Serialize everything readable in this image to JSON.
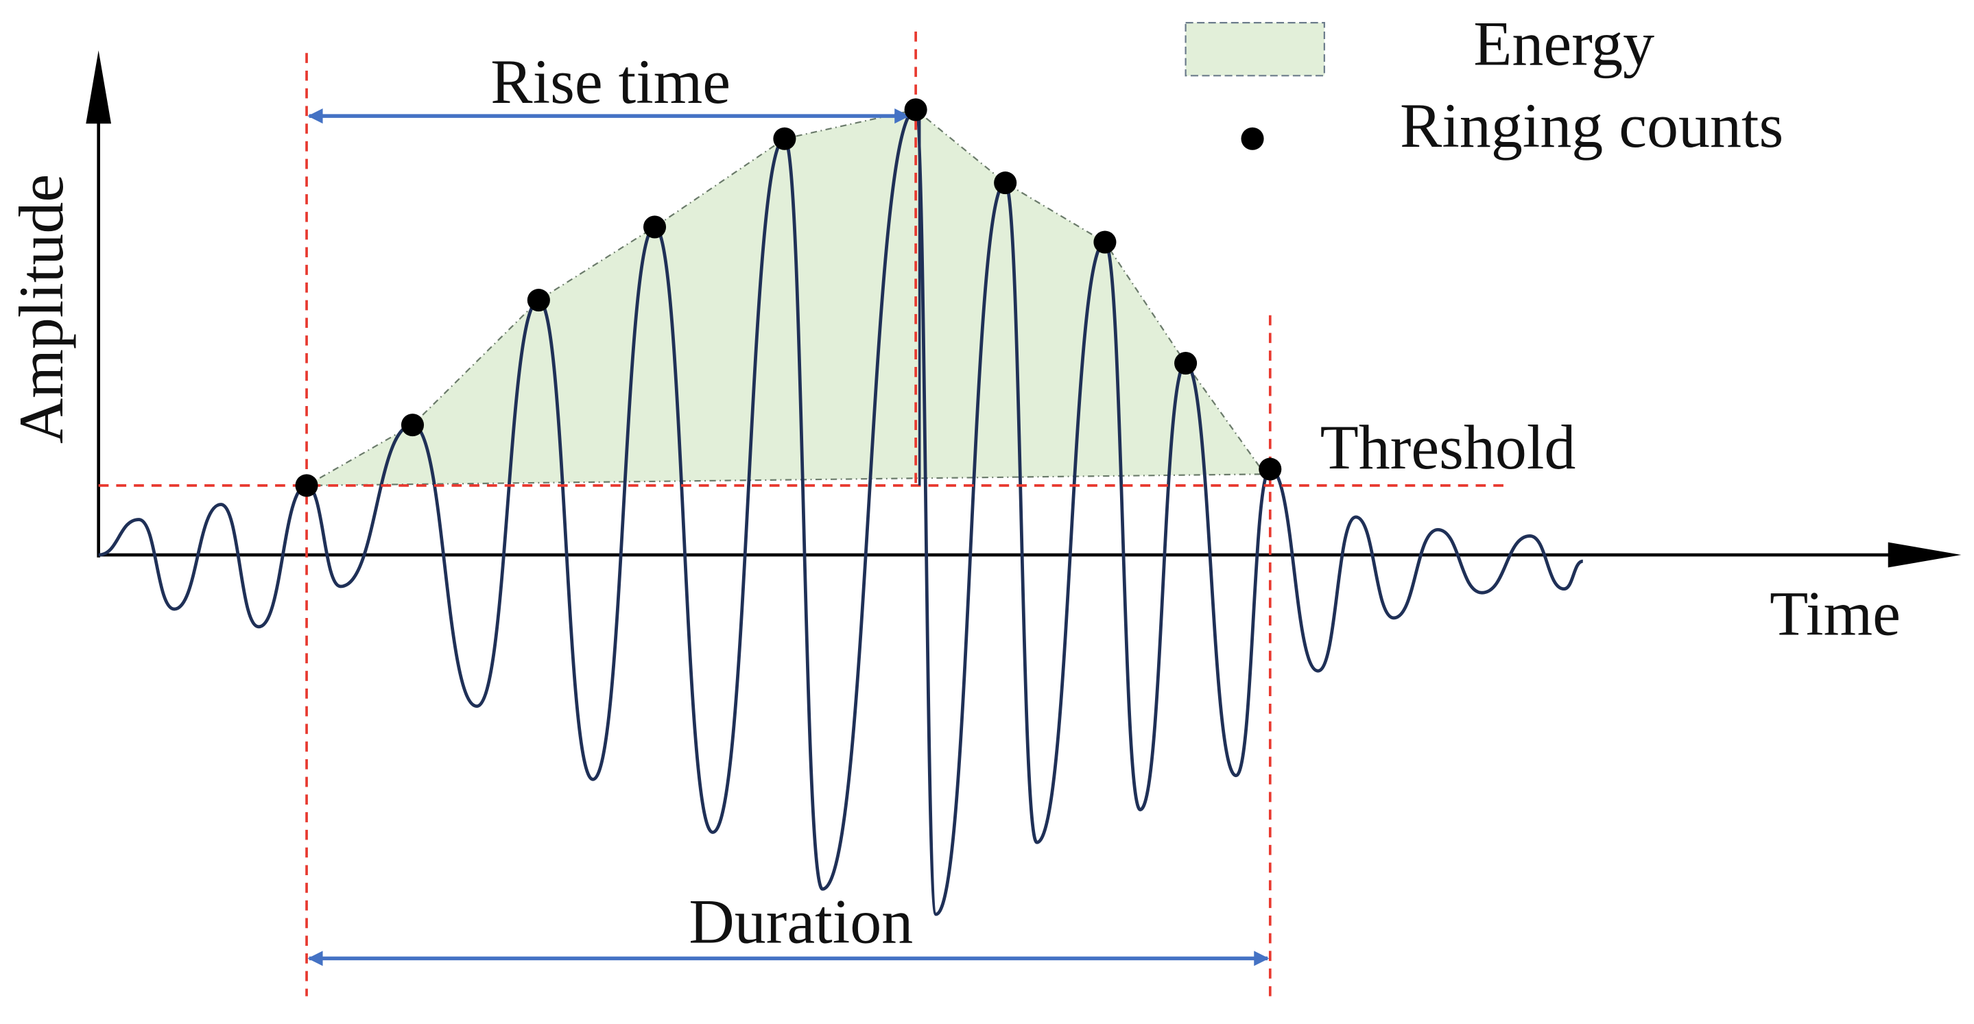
{
  "legend": {
    "energy": "Energy",
    "ringing_counts": "Ringing counts"
  },
  "labels": {
    "rise_time": "Rise time",
    "duration": "Duration",
    "threshold": "Threshold",
    "amplitude": "Amplitude",
    "time": "Time"
  }
}
